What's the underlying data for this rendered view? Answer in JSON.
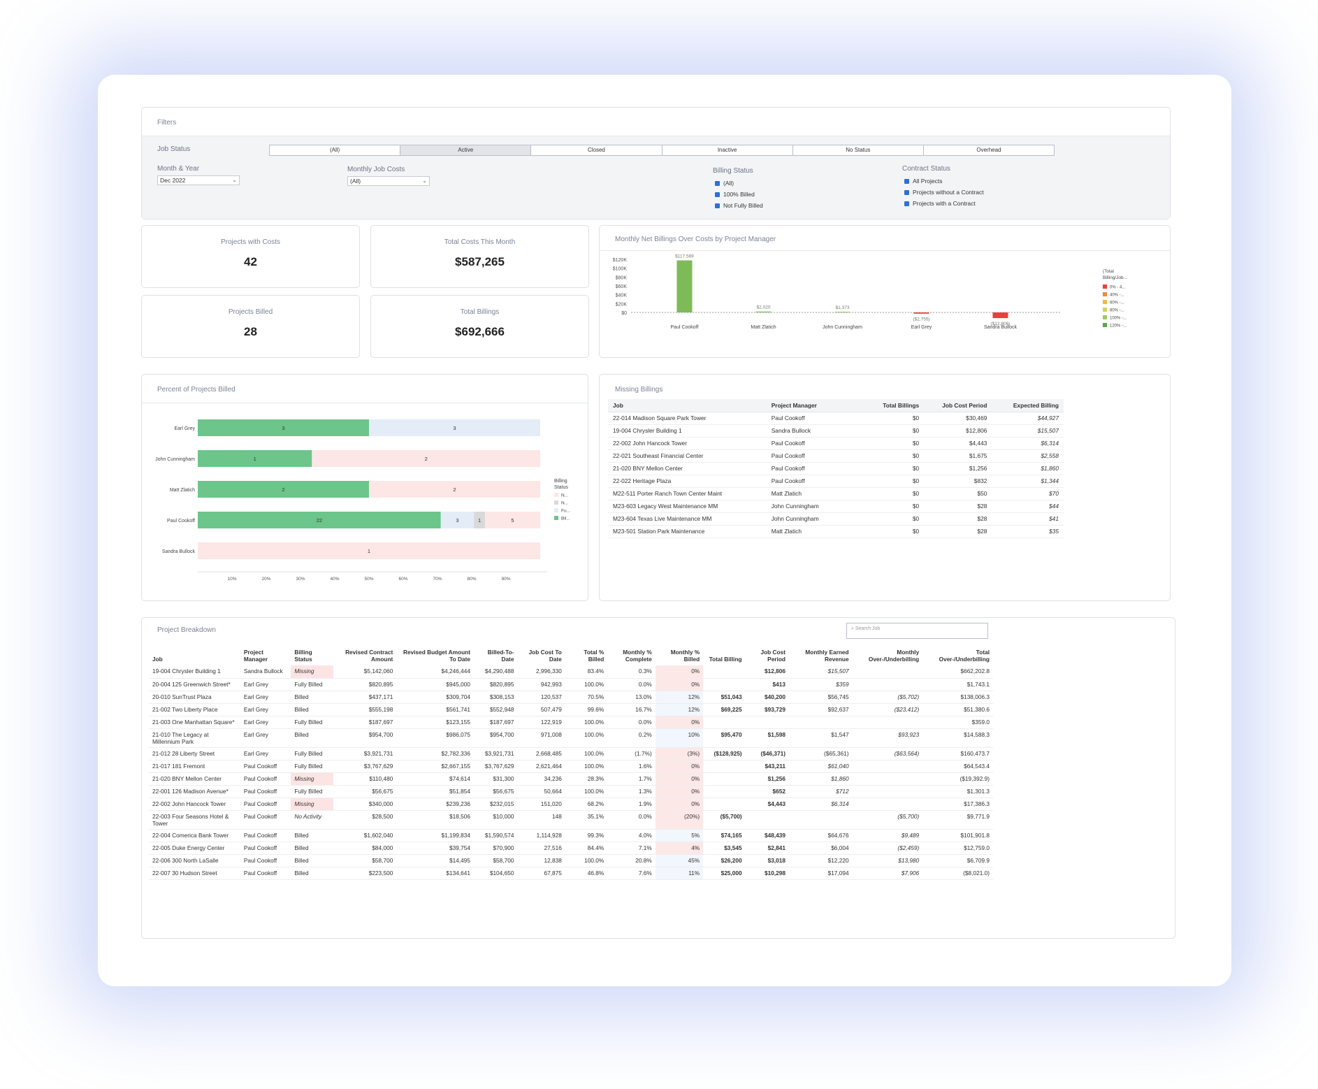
{
  "filters": {
    "title": "Filters",
    "job_status_label": "Job Status",
    "job_status_options": [
      "(All)",
      "Active",
      "Closed",
      "Inactive",
      "No Status",
      "Overhead"
    ],
    "month_year_label": "Month & Year",
    "month_year_value": "Dec 2022",
    "monthly_job_costs_label": "Monthly Job Costs",
    "monthly_job_costs_value": "(All)",
    "billing_status_label": "Billing Status",
    "billing_status_options": [
      "(All)",
      "100% Billed",
      "Not Fully Billed"
    ],
    "contract_status_label": "Contract Status",
    "contract_status_options": [
      "All Projects",
      "Projects without a Contract",
      "Projects with a Contract"
    ]
  },
  "kpis": {
    "projects_with_costs": {
      "label": "Projects with Costs",
      "value": "42"
    },
    "total_costs": {
      "label": "Total Costs This Month",
      "value": "$587,265"
    },
    "projects_billed": {
      "label": "Projects Billed",
      "value": "28"
    },
    "total_billings": {
      "label": "Total Billings",
      "value": "$692,666"
    }
  },
  "chart_data": [
    {
      "type": "bar",
      "title": "Monthly Net Billings Over Costs by Project Manager",
      "categories": [
        "Paul Cookoff",
        "Matt Zlatich",
        "John Cunningham",
        "Earl Grey",
        "Sandra Bullock"
      ],
      "values": [
        117569,
        2020,
        1373,
        -2755,
        -12806
      ],
      "data_labels": [
        "$117,569",
        "$2,020",
        "$1,373",
        "($2,755)",
        "($12,806)"
      ],
      "bar_colors": [
        "#7dbb57",
        "#7dbb57",
        "#7dbb57",
        "#e8403c",
        "#e8403c"
      ],
      "y_ticks": [
        "$120K",
        "$100K",
        "$80K",
        "$60K",
        "$40K",
        "$20K",
        "$0"
      ],
      "ylim": [
        -12806,
        120000
      ],
      "legend": {
        "title": "(Total Billing/Job...",
        "items": [
          {
            "label": "0% - 4...",
            "color": "#e8403c"
          },
          {
            "label": "40% -...",
            "color": "#f28a3c"
          },
          {
            "label": "60% -...",
            "color": "#f4b942"
          },
          {
            "label": "80% -...",
            "color": "#d8d24a"
          },
          {
            "label": "100% -...",
            "color": "#9ccc5a"
          },
          {
            "label": "120% -...",
            "color": "#5aa845"
          }
        ],
        "position": "right"
      }
    },
    {
      "type": "bar",
      "orientation": "horizontal-stacked",
      "title": "Percent of Projects Billed",
      "categories": [
        "Earl Grey",
        "John Cunningham",
        "Matt Zlatich",
        "Paul Cookoff",
        "Sandra Bullock"
      ],
      "series": [
        {
          "name": "Bil...",
          "color": "#6cc58b",
          "values": [
            3,
            1,
            2,
            22,
            0
          ]
        },
        {
          "name": "Fu...",
          "color": "#e4ecf8",
          "values": [
            3,
            0,
            0,
            3,
            0
          ]
        },
        {
          "name": "N...",
          "color": "#d9d9d9",
          "values": [
            0,
            0,
            0,
            1,
            0
          ]
        },
        {
          "name": "N...",
          "color": "#fde6e6",
          "values": [
            0,
            2,
            2,
            5,
            1
          ]
        }
      ],
      "x_ticks": [
        "10%",
        "20%",
        "30%",
        "40%",
        "50%",
        "60%",
        "70%",
        "80%",
        "90%"
      ],
      "legend": {
        "title": "Billing Status",
        "position": "right"
      }
    }
  ],
  "missing_billings": {
    "title": "Missing Billings",
    "columns": [
      "Job",
      "Project Manager",
      "Total Billings",
      "Job Cost Period",
      "Expected Billing"
    ],
    "rows": [
      [
        "22-014 Madison Square Park Tower",
        "Paul Cookoff",
        "$0",
        "$30,469",
        "$44,927"
      ],
      [
        "19-004 Chrysler Building 1",
        "Sandra Bullock",
        "$0",
        "$12,806",
        "$15,507"
      ],
      [
        "22-002 John Hancock Tower",
        "Paul Cookoff",
        "$0",
        "$4,443",
        "$6,314"
      ],
      [
        "22-021 Southeast Financial Center",
        "Paul Cookoff",
        "$0",
        "$1,675",
        "$2,558"
      ],
      [
        "21-020 BNY Mellon Center",
        "Paul Cookoff",
        "$0",
        "$1,256",
        "$1,860"
      ],
      [
        "22-022 Heritage Plaza",
        "Paul Cookoff",
        "$0",
        "$832",
        "$1,344"
      ],
      [
        "M22-511 Porter Ranch Town Center Maint",
        "Matt Zlatich",
        "$0",
        "$50",
        "$70"
      ],
      [
        "M23-603 Legacy West Maintenance MM",
        "John Cunningham",
        "$0",
        "$28",
        "$44"
      ],
      [
        "M23-604 Texas Live Maintenance MM",
        "John Cunningham",
        "$0",
        "$28",
        "$41"
      ],
      [
        "M23-501 Station Park Maintenance",
        "Matt Zlatich",
        "$0",
        "$28",
        "$35"
      ]
    ]
  },
  "project_breakdown": {
    "title": "Project Breakdown",
    "search_placeholder": "Search Job",
    "columns": [
      "Job",
      "Project Manager",
      "Billing Status",
      "Revised Contract Amount",
      "Revised Budget Amount To Date",
      "Billed-To-Date",
      "Job Cost To Date",
      "Total % Billed",
      "Monthly % Complete",
      "Monthly % Billed",
      "Total Billing",
      "Job Cost Period",
      "Monthly Earned Revenue",
      "Monthly Over-/Underbilling",
      "Total Over-/Underbilling"
    ],
    "rows": [
      [
        "19-004 Chrysler Building 1",
        "Sandra Bullock",
        "Missing",
        "$5,142,060",
        "$4,246,444",
        "$4,290,488",
        "2,996,330",
        "83.4%",
        "0.3%",
        "0%",
        "",
        "$12,806",
        "$15,507",
        "",
        "$662,202.8"
      ],
      [
        "20-004 125 Greenwich Street*",
        "Earl Grey",
        "Fully Billed",
        "$820,895",
        "$945,000",
        "$820,895",
        "942,993",
        "100.0%",
        "0.0%",
        "0%",
        "",
        "$413",
        "$359",
        "",
        "$1,743.1"
      ],
      [
        "20-010 SunTrust Plaza",
        "Earl Grey",
        "Billed",
        "$437,171",
        "$309,704",
        "$308,153",
        "120,537",
        "70.5%",
        "13.0%",
        "12%",
        "$51,043",
        "$40,200",
        "$56,745",
        "($5,702)",
        "$138,006.3"
      ],
      [
        "21-002 Two Liberty Place",
        "Earl Grey",
        "Billed",
        "$555,198",
        "$561,741",
        "$552,948",
        "507,479",
        "99.6%",
        "16.7%",
        "12%",
        "$69,225",
        "$93,729",
        "$92,637",
        "($23,412)",
        "$51,380.6"
      ],
      [
        "21-003 One Manhattan Square*",
        "Earl Grey",
        "Fully Billed",
        "$187,697",
        "$123,155",
        "$187,697",
        "122,919",
        "100.0%",
        "0.0%",
        "0%",
        "",
        "",
        "",
        "",
        "$359.0"
      ],
      [
        "21-010 The Legacy at Millennium Park",
        "Earl Grey",
        "Billed",
        "$954,700",
        "$986,075",
        "$954,700",
        "971,008",
        "100.0%",
        "0.2%",
        "10%",
        "$95,470",
        "$1,598",
        "$1,547",
        "$93,923",
        "$14,588.3"
      ],
      [
        "21-012 28 Liberty Street",
        "Earl Grey",
        "Fully Billed",
        "$3,921,731",
        "$2,782,336",
        "$3,921,731",
        "2,668,485",
        "100.0%",
        "(1.7%)",
        "(3%)",
        "($128,925)",
        "($46,371)",
        "($65,361)",
        "($63,564)",
        "$160,473.7"
      ],
      [
        "21-017 181 Fremont",
        "Paul Cookoff",
        "Fully Billed",
        "$3,767,629",
        "$2,667,155",
        "$3,767,629",
        "2,621,464",
        "100.0%",
        "1.6%",
        "0%",
        "",
        "$43,211",
        "$61,040",
        "",
        "$64,543.4"
      ],
      [
        "21-020 BNY Mellon Center",
        "Paul Cookoff",
        "Missing",
        "$110,480",
        "$74,614",
        "$31,300",
        "34,236",
        "28.3%",
        "1.7%",
        "0%",
        "",
        "$1,256",
        "$1,860",
        "",
        "($19,392.9)"
      ],
      [
        "22-001 126 Madison Avenue*",
        "Paul Cookoff",
        "Fully Billed",
        "$56,675",
        "$51,854",
        "$56,675",
        "50,664",
        "100.0%",
        "1.3%",
        "0%",
        "",
        "$652",
        "$712",
        "",
        "$1,301.3"
      ],
      [
        "22-002 John Hancock Tower",
        "Paul Cookoff",
        "Missing",
        "$340,000",
        "$239,236",
        "$232,015",
        "151,020",
        "68.2%",
        "1.9%",
        "0%",
        "",
        "$4,443",
        "$6,314",
        "",
        "$17,386.3"
      ],
      [
        "22-003 Four Seasons Hotel & Tower",
        "Paul Cookoff",
        "No Activity",
        "$28,500",
        "$18,506",
        "$10,000",
        "148",
        "35.1%",
        "0.0%",
        "(20%)",
        "($5,700)",
        "",
        "",
        "($5,700)",
        "$9,771.9"
      ],
      [
        "22-004 Comerica Bank Tower",
        "Paul Cookoff",
        "Billed",
        "$1,602,040",
        "$1,199,834",
        "$1,590,574",
        "1,114,928",
        "99.3%",
        "4.0%",
        "5%",
        "$74,165",
        "$48,439",
        "$64,676",
        "$9,489",
        "$101,901.8"
      ],
      [
        "22-005 Duke Energy Center",
        "Paul Cookoff",
        "Billed",
        "$84,000",
        "$39,754",
        "$70,900",
        "27,516",
        "84.4%",
        "7.1%",
        "4%",
        "$3,545",
        "$2,841",
        "$6,004",
        "($2,459)",
        "$12,759.0"
      ],
      [
        "22-006 300 North LaSalle",
        "Paul Cookoff",
        "Billed",
        "$58,700",
        "$14,495",
        "$58,700",
        "12,838",
        "100.0%",
        "20.8%",
        "45%",
        "$26,200",
        "$3,018",
        "$12,220",
        "$13,980",
        "$6,709.9"
      ],
      [
        "22-007 30 Hudson Street",
        "Paul Cookoff",
        "Billed",
        "$223,500",
        "$134,641",
        "$104,650",
        "67,875",
        "46.8%",
        "7.6%",
        "11%",
        "$25,000",
        "$10,298",
        "$17,094",
        "$7,906",
        "($8,021.0)"
      ]
    ]
  }
}
